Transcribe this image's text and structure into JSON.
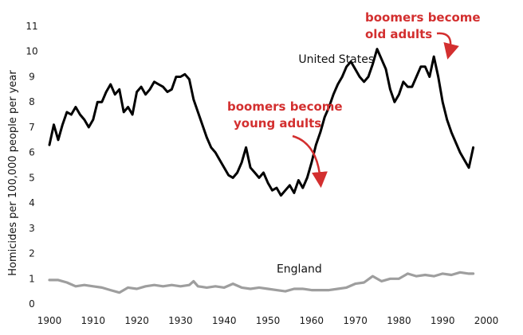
{
  "chart_data": {
    "type": "line",
    "title": "",
    "xlabel": "",
    "ylabel": "Homicides per 100,000 people per year",
    "xlim": [
      1900,
      2000
    ],
    "ylim": [
      0,
      11
    ],
    "xticks": [
      "1900",
      "1910",
      "1920",
      "1930",
      "1940",
      "1950",
      "1960",
      "1970",
      "1980",
      "1990",
      "2000"
    ],
    "yticks": [
      "0",
      "1",
      "2",
      "3",
      "4",
      "5",
      "6",
      "7",
      "8",
      "9",
      "10",
      "11"
    ],
    "grid": false,
    "series": [
      {
        "name": "United States",
        "color": "#000000",
        "x": [
          1900,
          1901,
          1902,
          1903,
          1904,
          1905,
          1906,
          1907,
          1908,
          1909,
          1910,
          1911,
          1912,
          1913,
          1914,
          1915,
          1916,
          1917,
          1918,
          1919,
          1920,
          1921,
          1922,
          1923,
          1924,
          1925,
          1926,
          1927,
          1928,
          1929,
          1930,
          1931,
          1932,
          1933,
          1934,
          1935,
          1936,
          1937,
          1938,
          1939,
          1940,
          1941,
          1942,
          1943,
          1944,
          1945,
          1946,
          1947,
          1948,
          1949,
          1950,
          1951,
          1952,
          1953,
          1954,
          1955,
          1956,
          1957,
          1958,
          1959,
          1960,
          1961,
          1962,
          1963,
          1964,
          1965,
          1966,
          1967,
          1968,
          1969,
          1970,
          1971,
          1972,
          1973,
          1974,
          1975,
          1976,
          1977,
          1978,
          1979,
          1980,
          1981,
          1982,
          1983,
          1984,
          1985,
          1986,
          1987,
          1988,
          1989,
          1990,
          1991,
          1992,
          1993,
          1994,
          1995,
          1996,
          1997
        ],
        "values": [
          6.3,
          7.1,
          6.5,
          7.1,
          7.6,
          7.5,
          7.8,
          7.5,
          7.3,
          7.0,
          7.3,
          8.0,
          8.0,
          8.4,
          8.7,
          8.3,
          8.5,
          7.6,
          7.8,
          7.5,
          8.4,
          8.6,
          8.3,
          8.5,
          8.8,
          8.7,
          8.6,
          8.4,
          8.5,
          9.0,
          9.0,
          9.1,
          8.9,
          8.1,
          7.6,
          7.1,
          6.6,
          6.2,
          6.0,
          5.7,
          5.4,
          5.1,
          5.0,
          5.2,
          5.6,
          6.2,
          5.4,
          5.2,
          5.0,
          5.2,
          4.8,
          4.5,
          4.6,
          4.3,
          4.5,
          4.7,
          4.4,
          4.9,
          4.6,
          5.0,
          5.6,
          6.3,
          6.8,
          7.4,
          7.8,
          8.3,
          8.7,
          9.0,
          9.4,
          9.6,
          9.3,
          9.0,
          8.8,
          9.0,
          9.5,
          10.1,
          9.7,
          9.3,
          8.5,
          8.0,
          8.3,
          8.8,
          8.6,
          8.6,
          9.0,
          9.4,
          9.4,
          9.0,
          9.8,
          9.0,
          8.0,
          7.3,
          6.8,
          6.4,
          6.0,
          5.7,
          5.4,
          6.2
        ]
      },
      {
        "name": "England",
        "color": "#9e9e9e",
        "x": [
          1900,
          1902,
          1904,
          1906,
          1908,
          1910,
          1912,
          1914,
          1916,
          1918,
          1920,
          1922,
          1924,
          1926,
          1928,
          1930,
          1932,
          1933,
          1934,
          1936,
          1938,
          1940,
          1942,
          1944,
          1946,
          1948,
          1950,
          1952,
          1954,
          1956,
          1958,
          1960,
          1962,
          1964,
          1966,
          1968,
          1970,
          1972,
          1974,
          1976,
          1978,
          1980,
          1982,
          1984,
          1986,
          1988,
          1990,
          1992,
          1994,
          1996,
          1997
        ],
        "values": [
          0.95,
          0.95,
          0.85,
          0.7,
          0.75,
          0.7,
          0.65,
          0.55,
          0.45,
          0.65,
          0.6,
          0.7,
          0.75,
          0.7,
          0.75,
          0.7,
          0.75,
          0.9,
          0.7,
          0.65,
          0.7,
          0.65,
          0.8,
          0.65,
          0.6,
          0.65,
          0.6,
          0.55,
          0.5,
          0.6,
          0.6,
          0.55,
          0.55,
          0.55,
          0.6,
          0.65,
          0.8,
          0.85,
          1.1,
          0.9,
          1.0,
          1.0,
          1.2,
          1.1,
          1.15,
          1.1,
          1.2,
          1.15,
          1.25,
          1.2,
          1.2
        ]
      }
    ],
    "annotations": [
      {
        "text_lines": [
          "boomers become",
          "young adults"
        ],
        "color": "#d32f2f",
        "points_to": [
          1962,
          4.6
        ]
      },
      {
        "text_lines": [
          "boomers become",
          "old adults"
        ],
        "color": "#d32f2f",
        "points_to": [
          1991,
          9.8
        ]
      }
    ]
  }
}
